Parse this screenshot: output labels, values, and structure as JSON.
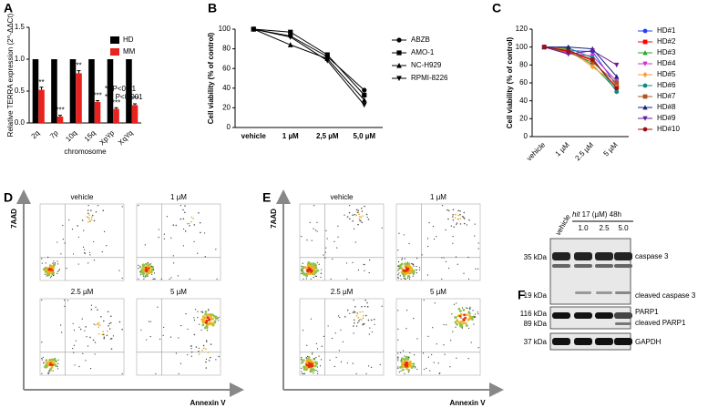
{
  "panel_labels": [
    "A",
    "B",
    "C",
    "D",
    "E",
    "F"
  ],
  "chart_data": [
    {
      "type": "bar",
      "ylabel": "Relative TERRA expression (2^-ΔΔCt)",
      "xlabel": "chromosome",
      "categories": [
        "2q",
        "7p",
        "10q",
        "15q",
        "XpYp",
        "XqYq"
      ],
      "series": [
        {
          "name": "HD",
          "color": "#000000",
          "values": [
            1,
            1,
            1,
            1,
            1,
            1
          ]
        },
        {
          "name": "MM",
          "color": "#e8231f",
          "values": [
            0.52,
            0.1,
            0.78,
            0.33,
            0.22,
            0.28
          ],
          "errors": [
            0.04,
            0.02,
            0.04,
            0.02,
            0.02,
            0.02
          ],
          "significance": [
            "**",
            "***",
            "**",
            "***",
            "***",
            "***"
          ]
        }
      ],
      "notes": [
        "**  P<0.01",
        "***  P<0.001"
      ],
      "ylim": [
        0,
        1.5
      ],
      "yticks": [
        {
          "value": 0,
          "label": "0.0"
        },
        {
          "value": 0.5,
          "label": "0.5"
        },
        {
          "value": 1,
          "label": "1.0"
        },
        {
          "value": 1.5,
          "label": "1.5"
        }
      ],
      "legend": "upper right"
    },
    {
      "type": "line",
      "ylabel": "Cell viability (% of control)",
      "categories": [
        "vehicle",
        "1 µM",
        "2,5 µM",
        "5,0 µM"
      ],
      "series": [
        {
          "name": "ABZB",
          "color": "#000000",
          "marker": "circle",
          "values": [
            100,
            93,
            72,
            38
          ]
        },
        {
          "name": "AMO-1",
          "color": "#000000",
          "marker": "square",
          "values": [
            100,
            97,
            74,
            33
          ]
        },
        {
          "name": "NC-H929",
          "color": "#000000",
          "marker": "triangle-up",
          "values": [
            100,
            84,
            70,
            28
          ]
        },
        {
          "name": "RPMI-8226",
          "color": "#000000",
          "marker": "triangle-down",
          "values": [
            100,
            92,
            68,
            23
          ]
        }
      ],
      "ylim": [
        0,
        100
      ],
      "yticks": [
        0,
        20,
        40,
        60,
        80,
        100
      ],
      "legend": "right"
    },
    {
      "type": "line",
      "ylabel": "Cell viability (% of control)",
      "rotate_xlabels": true,
      "categories": [
        "vehicle",
        "1 µM",
        "2.5 µM",
        "5 µM"
      ],
      "series": [
        {
          "name": "HD#1",
          "color": "#1f3fff",
          "marker": "circle",
          "values": [
            100,
            96,
            95,
            57
          ]
        },
        {
          "name": "HD#2",
          "color": "#ff0000",
          "marker": "square",
          "values": [
            100,
            95,
            85,
            55
          ]
        },
        {
          "name": "HD#3",
          "color": "#22aa22",
          "marker": "triangle-up",
          "values": [
            100,
            98,
            80,
            52
          ]
        },
        {
          "name": "HD#4",
          "color": "#cc33cc",
          "marker": "triangle-down",
          "values": [
            100,
            93,
            90,
            62
          ]
        },
        {
          "name": "HD#5",
          "color": "#ff9933",
          "marker": "diamond",
          "values": [
            100,
            97,
            78,
            58
          ]
        },
        {
          "name": "HD#6",
          "color": "#118888",
          "marker": "circle",
          "values": [
            100,
            99,
            88,
            50
          ]
        },
        {
          "name": "HD#7",
          "color": "#aa5522",
          "marker": "square",
          "values": [
            100,
            94,
            83,
            60
          ]
        },
        {
          "name": "HD#8",
          "color": "#1a237e",
          "marker": "triangle-up",
          "values": [
            100,
            100,
            98,
            67
          ]
        },
        {
          "name": "HD#9",
          "color": "#6a1b9a",
          "marker": "triangle-down",
          "values": [
            100,
            92,
            96,
            80
          ]
        },
        {
          "name": "HD#10",
          "color": "#a01010",
          "marker": "circle",
          "values": [
            100,
            96,
            86,
            54
          ]
        }
      ],
      "ylim": [
        0,
        120
      ],
      "yticks": [
        0,
        20,
        40,
        60,
        80,
        100,
        120
      ],
      "legend": "right"
    }
  ],
  "flow": [
    {
      "ylabel": "7AAD",
      "xlabel": "Annexin V",
      "titles": [
        "vehicle",
        "1 µM",
        "2.5 µM",
        "5 µM"
      ]
    },
    {
      "ylabel": "7AAD",
      "xlabel": "Annexin V",
      "titles": [
        "vehicle",
        "1 µM",
        "2.5 µM",
        "5 µM"
      ]
    }
  ],
  "blot": {
    "lane_header": "vehicle",
    "treatment_drug": "hit",
    "treatment": " 17 (µM) 48h",
    "doses": [
      "1.0",
      "2.5",
      "5.0"
    ],
    "markers": [
      "35 kDa",
      "19 kDa",
      "116 kDa",
      "89 kDa",
      "37 kDa"
    ],
    "proteins": [
      "caspase 3",
      "cleaved caspase 3",
      "PARP1",
      "cleaved PARP1",
      "GAPDH"
    ]
  }
}
